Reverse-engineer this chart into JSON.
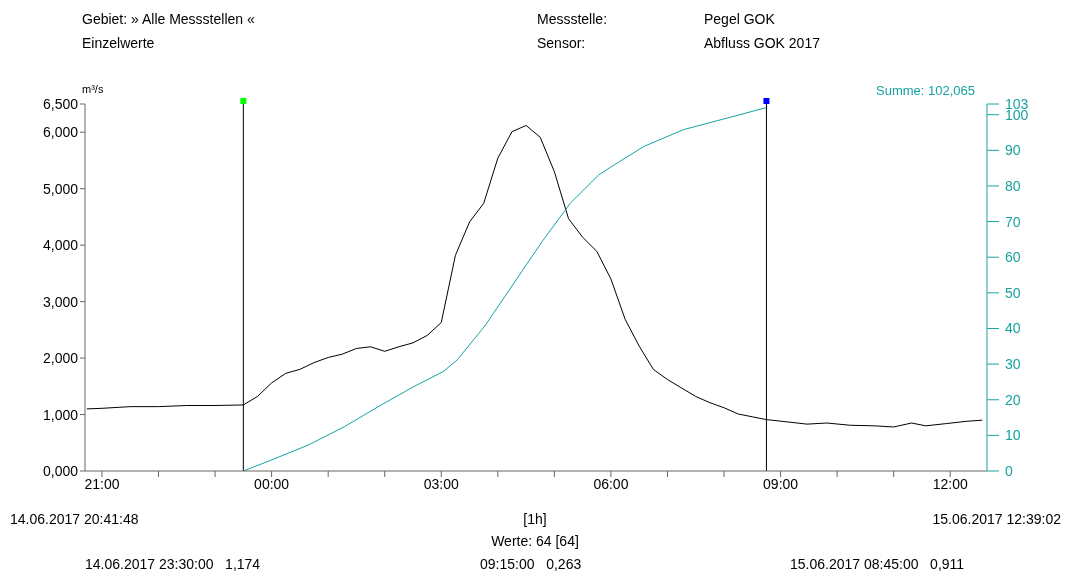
{
  "chart_data": {
    "type": "line",
    "title": "Gebiet: » Alle Messstellen «",
    "subtitle": "Einzelwerte",
    "ylabel": "m³/s",
    "annotations": [
      "Messstelle:",
      "Pegel GOK",
      "Sensor:",
      "Abfluss GOK 2017",
      "Summe: 102,065",
      "14.06.2017 20:41:48",
      "[1h]",
      "15.06.2017 12:39:02",
      "Werte: 64 [64]",
      "14.06.2017 23:30:00   1,174",
      "09:15:00   0,263",
      "15.06.2017 08:45:00   0,911"
    ],
    "xlim": [
      "2017-06-14T20:42",
      "2017-06-15T12:39"
    ],
    "xticks": [
      {
        "value": "2017-06-14T21:00",
        "label": "21:00"
      },
      {
        "value": "2017-06-14T22:00",
        "label": null
      },
      {
        "value": "2017-06-14T23:00",
        "label": null
      },
      {
        "value": "2017-06-15T00:00",
        "label": "00:00"
      },
      {
        "value": "2017-06-15T01:00",
        "label": null
      },
      {
        "value": "2017-06-15T02:00",
        "label": null
      },
      {
        "value": "2017-06-15T03:00",
        "label": "03:00"
      },
      {
        "value": "2017-06-15T04:00",
        "label": null
      },
      {
        "value": "2017-06-15T05:00",
        "label": null
      },
      {
        "value": "2017-06-15T06:00",
        "label": "06:00"
      },
      {
        "value": "2017-06-15T07:00",
        "label": null
      },
      {
        "value": "2017-06-15T08:00",
        "label": null
      },
      {
        "value": "2017-06-15T09:00",
        "label": "09:00"
      },
      {
        "value": "2017-06-15T10:00",
        "label": null
      },
      {
        "value": "2017-06-15T11:00",
        "label": null
      },
      {
        "value": "2017-06-15T12:00",
        "label": "12:00"
      }
    ],
    "ylim": [
      0,
      6.5
    ],
    "yticks": [
      {
        "value": 0,
        "label": "0,000"
      },
      {
        "value": 1,
        "label": "1,000"
      },
      {
        "value": 2,
        "label": "2,000"
      },
      {
        "value": 3,
        "label": "3,000"
      },
      {
        "value": 4,
        "label": "4,000"
      },
      {
        "value": 5,
        "label": "5,000"
      },
      {
        "value": 6,
        "label": "6,000"
      },
      {
        "value": 6.5,
        "label": "6,500"
      }
    ],
    "y2lim": [
      0,
      103
    ],
    "y2ticks": [
      0,
      10,
      20,
      30,
      40,
      50,
      60,
      70,
      80,
      90,
      100,
      103
    ],
    "ref_lines": [
      {
        "axis": "x",
        "value": "2017-06-14T23:30",
        "color": "#000000"
      },
      {
        "axis": "x",
        "value": "2017-06-15T08:45",
        "color": "#000000"
      }
    ],
    "series": [
      {
        "color": "#000000",
        "x": [
          "2017-06-14T20:44",
          "2017-06-14T21:00",
          "2017-06-14T21:30",
          "2017-06-14T22:00",
          "2017-06-14T22:30",
          "2017-06-14T23:00",
          "2017-06-14T23:30",
          "2017-06-14T23:45",
          "2017-06-15T00:00",
          "2017-06-15T00:15",
          "2017-06-15T00:30",
          "2017-06-15T00:45",
          "2017-06-15T01:00",
          "2017-06-15T01:15",
          "2017-06-15T01:30",
          "2017-06-15T01:45",
          "2017-06-15T02:00",
          "2017-06-15T02:15",
          "2017-06-15T02:30",
          "2017-06-15T02:45",
          "2017-06-15T03:00",
          "2017-06-15T03:15",
          "2017-06-15T03:30",
          "2017-06-15T03:45",
          "2017-06-15T04:00",
          "2017-06-15T04:15",
          "2017-06-15T04:30",
          "2017-06-15T04:45",
          "2017-06-15T05:00",
          "2017-06-15T05:15",
          "2017-06-15T05:30",
          "2017-06-15T05:45",
          "2017-06-15T06:00",
          "2017-06-15T06:15",
          "2017-06-15T06:30",
          "2017-06-15T06:45",
          "2017-06-15T07:00",
          "2017-06-15T07:15",
          "2017-06-15T07:30",
          "2017-06-15T07:45",
          "2017-06-15T08:00",
          "2017-06-15T08:15",
          "2017-06-15T08:30",
          "2017-06-15T08:45",
          "2017-06-15T09:07",
          "2017-06-15T09:28",
          "2017-06-15T09:49",
          "2017-06-15T10:14",
          "2017-06-15T10:39",
          "2017-06-15T11:00",
          "2017-06-15T11:19",
          "2017-06-15T11:34",
          "2017-06-15T11:56",
          "2017-06-15T12:17",
          "2017-06-15T12:34"
        ],
        "values": [
          1.1,
          1.11,
          1.14,
          1.14,
          1.16,
          1.16,
          1.17,
          1.32,
          1.56,
          1.73,
          1.8,
          1.92,
          2.01,
          2.07,
          2.17,
          2.2,
          2.12,
          2.2,
          2.27,
          2.4,
          2.63,
          3.82,
          4.41,
          4.74,
          5.54,
          6.01,
          6.12,
          5.91,
          5.3,
          4.47,
          4.14,
          3.89,
          3.4,
          2.69,
          2.21,
          1.8,
          1.62,
          1.47,
          1.32,
          1.21,
          1.12,
          1.01,
          0.96,
          0.91,
          0.87,
          0.83,
          0.85,
          0.81,
          0.8,
          0.78,
          0.85,
          0.8,
          0.84,
          0.88,
          0.9
        ]
      },
      {
        "color": "#17a2a2",
        "axis": "y2",
        "x": [
          "2017-06-14T23:30",
          "2017-06-15T00:00",
          "2017-06-15T00:39",
          "2017-06-15T01:17",
          "2017-06-15T01:56",
          "2017-06-15T02:31",
          "2017-06-15T03:02",
          "2017-06-15T03:17",
          "2017-06-15T03:47",
          "2017-06-15T04:17",
          "2017-06-15T04:47",
          "2017-06-15T05:17",
          "2017-06-15T05:47",
          "2017-06-15T06:04",
          "2017-06-15T06:35",
          "2017-06-15T07:17",
          "2017-06-15T08:04",
          "2017-06-15T08:45"
        ],
        "values": [
          0,
          3.1,
          7.3,
          12.4,
          18.5,
          23.7,
          27.9,
          31.2,
          41,
          52.7,
          64.4,
          75.2,
          83.1,
          86,
          91.1,
          95.8,
          99.1,
          102
        ]
      }
    ]
  }
}
